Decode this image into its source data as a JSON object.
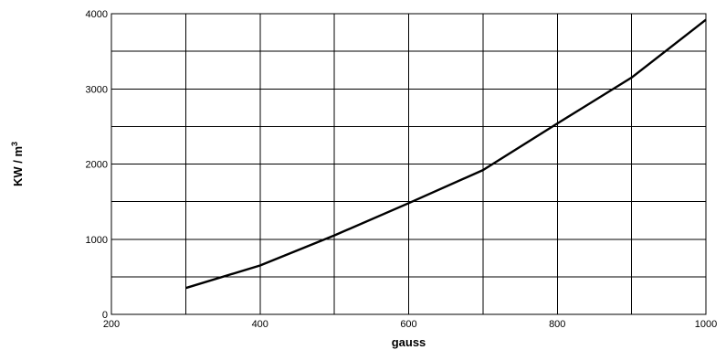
{
  "chart_data": {
    "type": "line",
    "title": "",
    "xlabel": "gauss",
    "ylabel": "KW / m",
    "ylabel_superscript": "3",
    "xlim": [
      200,
      1000
    ],
    "ylim": [
      0,
      4000
    ],
    "xticks": [
      200,
      400,
      600,
      800,
      1000
    ],
    "yticks": [
      0,
      1000,
      2000,
      3000,
      4000
    ],
    "x_gridlines": [
      300,
      400,
      500,
      600,
      700,
      800,
      900,
      1000
    ],
    "y_gridlines": [
      500,
      1000,
      1500,
      2000,
      2500,
      3000,
      3500,
      4000
    ],
    "grid": true,
    "series": [
      {
        "x": [
          300,
          400,
          500,
          600,
          700,
          800,
          900,
          1000
        ],
        "y": [
          350,
          650,
          1050,
          1480,
          1920,
          2540,
          3150,
          3920
        ]
      }
    ]
  }
}
